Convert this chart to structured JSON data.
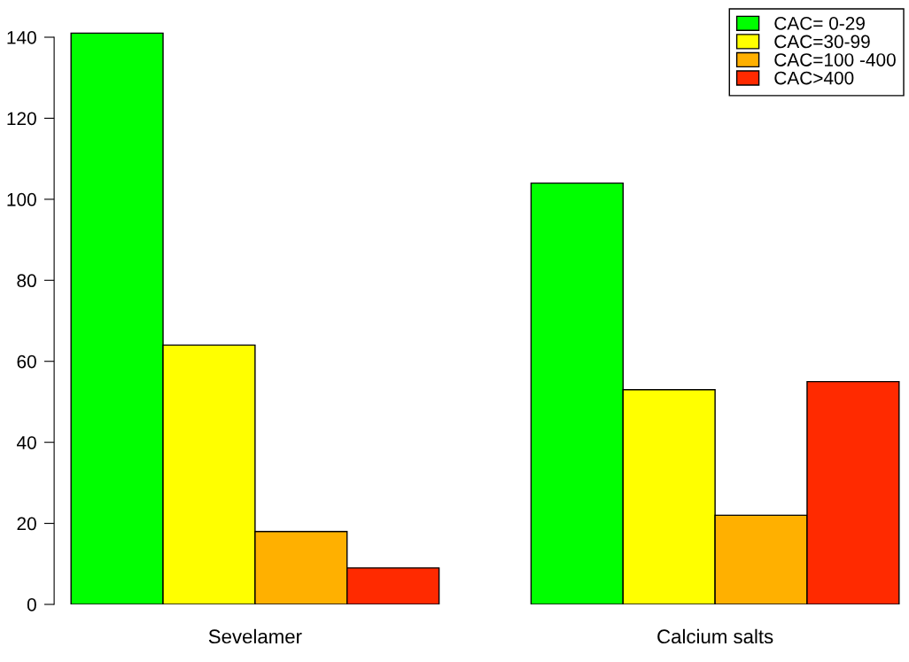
{
  "chart_data": {
    "type": "bar",
    "categories": [
      "Sevelamer",
      "Calcium salts"
    ],
    "series": [
      {
        "name": "CAC= 0-29",
        "color": "#00ff00",
        "values": [
          141,
          104
        ]
      },
      {
        "name": "CAC=30-99",
        "color": "#ffff00",
        "values": [
          64,
          53
        ]
      },
      {
        "name": "CAC=100 -400",
        "color": "#ffb000",
        "values": [
          18,
          22
        ]
      },
      {
        "name": "CAC>400",
        "color": "#ff2a00",
        "values": [
          9,
          55
        ]
      }
    ],
    "ylim": [
      0,
      147
    ],
    "yticks": [
      0,
      20,
      40,
      60,
      80,
      100,
      120,
      140
    ],
    "legend": "top right",
    "grid": false
  }
}
